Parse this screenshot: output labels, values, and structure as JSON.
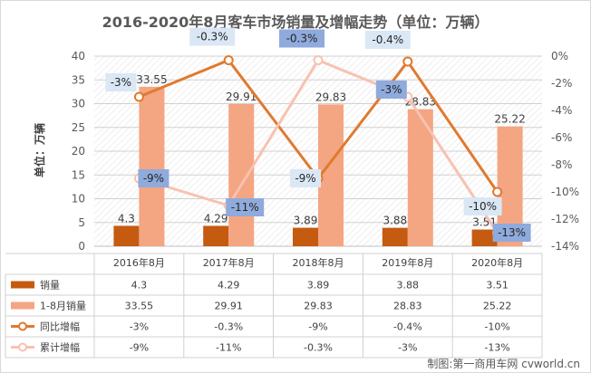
{
  "chart_data": {
    "type": "bar",
    "title": "2016-2020年8月客车市场销量及增幅走势（单位：万辆）",
    "ylabel": "单位：万辆",
    "categories": [
      "2016年8月",
      "2017年8月",
      "2018年8月",
      "2019年8月",
      "2020年8月"
    ],
    "ylim": [
      0,
      40
    ],
    "yticks": [
      0,
      5,
      10,
      15,
      20,
      25,
      30,
      35,
      40
    ],
    "y2lim": [
      -14,
      0
    ],
    "y2ticks": [
      "0%",
      "-2%",
      "-4%",
      "-6%",
      "-8%",
      "-10%",
      "-12%",
      "-14%"
    ],
    "series": [
      {
        "name": "销量",
        "type": "bar",
        "axis": "left",
        "color": "#c55a11",
        "values": [
          4.3,
          4.29,
          3.89,
          3.88,
          3.51
        ],
        "labels": [
          "4.3",
          "4.29",
          "3.89",
          "3.88",
          "3.51"
        ]
      },
      {
        "name": "1-8月销量",
        "type": "bar",
        "axis": "left",
        "color": "#f4a582",
        "values": [
          33.55,
          29.91,
          29.83,
          28.83,
          25.22
        ],
        "labels": [
          "33.55",
          "29.91",
          "29.83",
          "28.83",
          "25.22"
        ]
      },
      {
        "name": "同比增幅",
        "type": "line",
        "axis": "right",
        "color": "#e07a2e",
        "values": [
          -3,
          -0.3,
          -9,
          -0.4,
          -10
        ],
        "labels": [
          "-3%",
          "-0.3%",
          "-9%",
          "-0.4%",
          "-10%"
        ]
      },
      {
        "name": "累计增幅",
        "type": "line",
        "axis": "right",
        "color": "#f7c2b0",
        "values": [
          -9,
          -11,
          -0.3,
          -3,
          -13
        ],
        "labels": [
          "-9%",
          "-11%",
          "-0.3%",
          "-3%",
          "-13%"
        ]
      }
    ],
    "legend": "bottom-table",
    "grid": true
  },
  "credit": "制图:第一商用车网 cvworld.cn"
}
